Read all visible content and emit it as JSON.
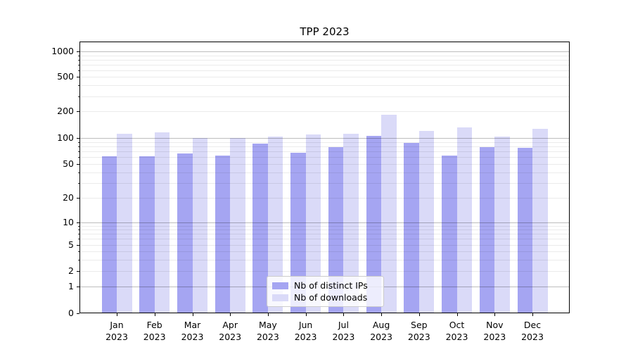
{
  "title": "TPP 2023",
  "chart_data": {
    "type": "bar",
    "title": "TPP 2023",
    "yscale": "symlog",
    "grid": "both",
    "legend_position": "lower center",
    "categories": [
      "Jan\n2023",
      "Feb\n2023",
      "Mar\n2023",
      "Apr\n2023",
      "May\n2023",
      "Jun\n2023",
      "Jul\n2023",
      "Aug\n2023",
      "Sep\n2023",
      "Oct\n2023",
      "Nov\n2023",
      "Dec\n2023"
    ],
    "yticks": [
      0,
      1,
      2,
      5,
      10,
      20,
      50,
      100,
      200,
      500,
      1000
    ],
    "ylim": [
      0,
      1500
    ],
    "xlabel": "",
    "ylabel": "",
    "series": [
      {
        "name": "Nb of distinct IPs",
        "color": "#a5a5f2",
        "values": [
          61,
          61,
          66,
          63,
          86,
          67,
          79,
          106,
          88,
          63,
          79,
          77
        ]
      },
      {
        "name": "Nb of downloads",
        "color": "#dadaf8",
        "values": [
          112,
          115,
          101,
          100,
          103,
          109,
          111,
          184,
          120,
          132,
          104,
          127
        ]
      }
    ]
  }
}
